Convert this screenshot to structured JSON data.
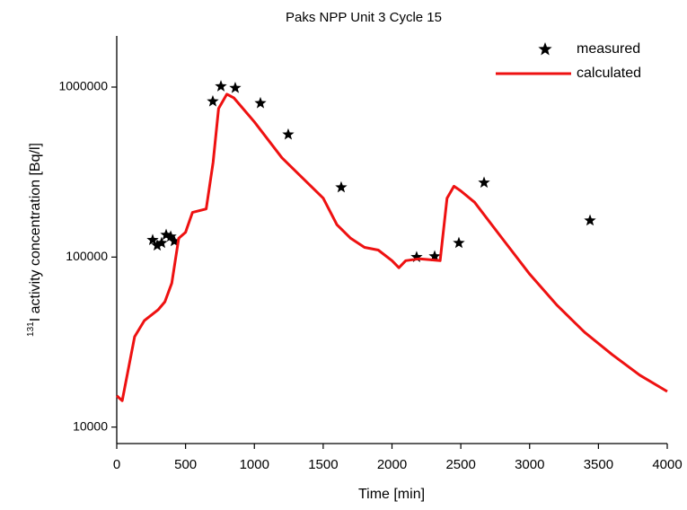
{
  "chart_data": {
    "type": "scatter+line",
    "title": "Paks NPP Unit 3 Cycle 15",
    "xlabel": "Time [min]",
    "ylabel_sup": "131",
    "ylabel": "I activity concentration  [Bq/l]",
    "xlim": [
      0,
      4000
    ],
    "xticks": [
      0,
      500,
      1000,
      1500,
      2000,
      2500,
      3000,
      3500,
      4000
    ],
    "ylim": [
      8000,
      2000000
    ],
    "yticks": [
      10000,
      100000,
      1000000
    ],
    "log_y": true,
    "legend": "upper right",
    "series": [
      {
        "name": "measured",
        "type": "scatter",
        "color": "#000000",
        "x": [
          261,
          294,
          326,
          359,
          392,
          418,
          698,
          757,
          861,
          1044,
          1246,
          1631,
          2179,
          2310,
          2486,
          2669,
          3439
        ],
        "values": [
          126000,
          117000,
          121000,
          135000,
          132000,
          124000,
          824000,
          1010000,
          988000,
          804000,
          526000,
          257000,
          100000,
          101000,
          121000,
          274000,
          164000
        ]
      },
      {
        "name": "calculated",
        "type": "line",
        "color": "#ee1111",
        "x": [
          0,
          40,
          130,
          200,
          300,
          350,
          400,
          450,
          500,
          550,
          650,
          700,
          740,
          800,
          850,
          1000,
          1200,
          1300,
          1500,
          1600,
          1700,
          1800,
          1900,
          2000,
          2050,
          2100,
          2200,
          2350,
          2400,
          2450,
          2500,
          2600,
          2800,
          3000,
          3200,
          3400,
          3600,
          3800,
          4000
        ],
        "values": [
          15300,
          14300,
          34000,
          42300,
          48900,
          54600,
          70300,
          129000,
          140000,
          183000,
          192000,
          361000,
          748000,
          908000,
          865000,
          624000,
          384000,
          320000,
          222000,
          155000,
          129000,
          114000,
          110000,
          95300,
          86500,
          95300,
          97700,
          95300,
          222000,
          261000,
          245000,
          210000,
          129000,
          79400,
          52000,
          36100,
          26700,
          20200,
          16200
        ]
      }
    ]
  }
}
